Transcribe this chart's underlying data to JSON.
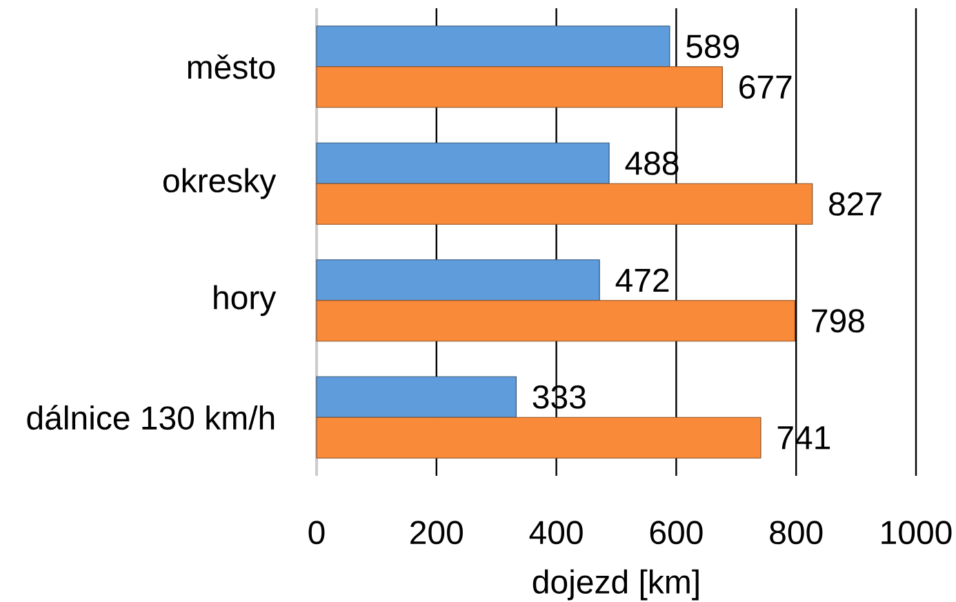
{
  "chart_data": {
    "type": "bar",
    "orientation": "horizontal",
    "categories": [
      "město",
      "okresky",
      "hory",
      "dálnice 130 km/h"
    ],
    "series": [
      {
        "color": "#5e9cdc",
        "values": [
          589,
          488,
          472,
          333
        ]
      },
      {
        "color": "#f98a3a",
        "values": [
          677,
          827,
          798,
          741
        ]
      }
    ],
    "xlabel": "dojezd [km]",
    "xlim": [
      0,
      1000
    ],
    "xticks": [
      0,
      200,
      400,
      600,
      800,
      1000
    ],
    "grid": "x",
    "data_labels": true
  }
}
